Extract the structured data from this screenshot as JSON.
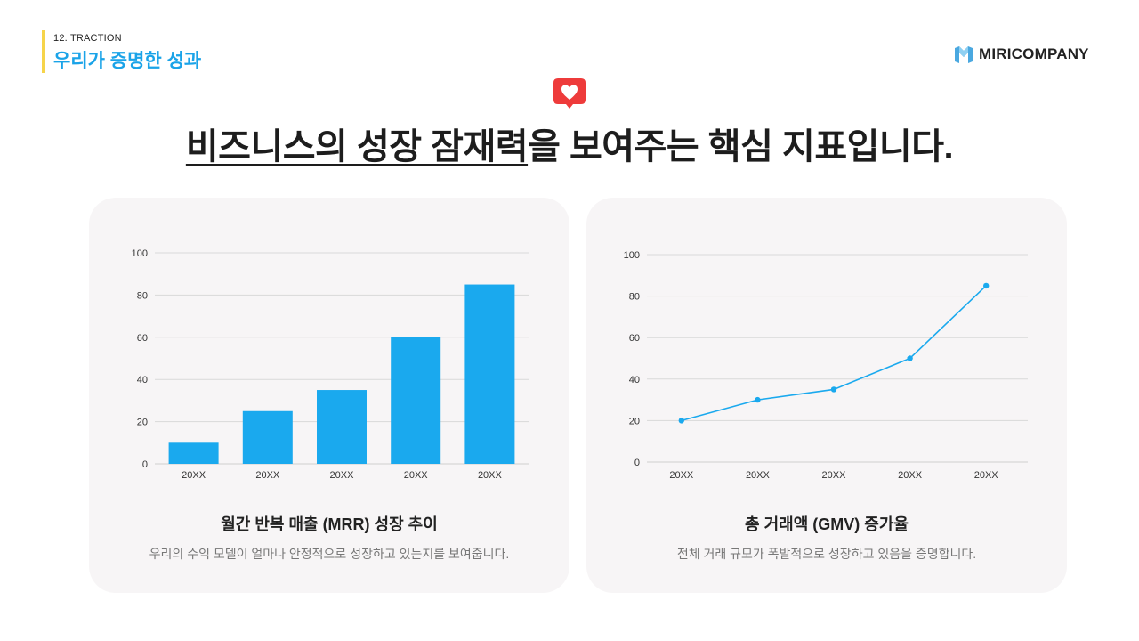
{
  "section": {
    "number": "12. TRACTION",
    "title": "우리가 증명한 성과"
  },
  "brand": {
    "name": "MIRICOMPANY",
    "logo_icon": "m-cube-logo-icon",
    "accent": "#1aa3e8",
    "tag_bar_color": "#f6d44a"
  },
  "badge": {
    "icon": "heart-speech-bubble-icon",
    "color": "#ee3b3b"
  },
  "headline": {
    "underlined": "비즈니스의 성장 잠재력",
    "rest": "을 보여주는 핵심 지표입니다."
  },
  "cards": [
    {
      "title": "월간 반복 매출 (MRR) 성장 추이",
      "description": "우리의 수익 모델이 얼마나 안정적으로 성장하고 있는지를 보여줍니다."
    },
    {
      "title": "총 거래액 (GMV) 증가율",
      "description": "전체 거래 규모가 폭발적으로 성장하고 있음을 증명합니다."
    }
  ],
  "chart_data": [
    {
      "type": "bar",
      "title": "월간 반복 매출 (MRR) 성장 추이",
      "categories": [
        "20XX",
        "20XX",
        "20XX",
        "20XX",
        "20XX"
      ],
      "values": [
        10,
        25,
        35,
        60,
        85
      ],
      "yticks": [
        "0",
        "20",
        "40",
        "60",
        "80",
        "100"
      ],
      "ylim": [
        0,
        100
      ],
      "xlabel": "",
      "ylabel": "",
      "grid": true,
      "legend": "none",
      "color": "#1aa9ee"
    },
    {
      "type": "line",
      "title": "총 거래액 (GMV) 증가율",
      "categories": [
        "20XX",
        "20XX",
        "20XX",
        "20XX",
        "20XX"
      ],
      "values": [
        20,
        30,
        35,
        50,
        85
      ],
      "yticks": [
        "0",
        "20",
        "40",
        "60",
        "80",
        "100"
      ],
      "ylim": [
        0,
        100
      ],
      "xlabel": "",
      "ylabel": "",
      "grid": true,
      "legend": "none",
      "color": "#1aa9ee"
    }
  ]
}
